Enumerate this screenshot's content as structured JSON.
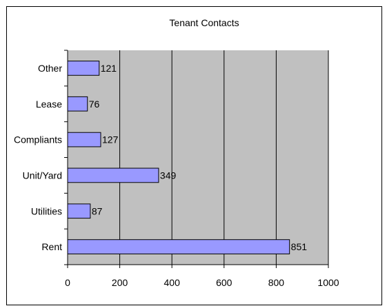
{
  "chart_data": {
    "type": "bar",
    "orientation": "horizontal",
    "title": "Tenant Contacts",
    "categories": [
      "Other",
      "Lease",
      "Compliants",
      "Unit/Yard",
      "Utilities",
      "Rent"
    ],
    "values": [
      121,
      76,
      127,
      349,
      87,
      851
    ],
    "data_labels": [
      "121",
      "76",
      "127",
      "349",
      "87",
      "851"
    ],
    "xlim": [
      0,
      1000
    ],
    "x_ticks": [
      "0",
      "200",
      "400",
      "600",
      "800",
      "1000"
    ],
    "xlabel": "",
    "ylabel": "",
    "grid": "vertical",
    "legend": "none",
    "colors": {
      "bar_fill": "#9999ff",
      "bar_stroke": "#000000",
      "plot_background": "#c0c0c0",
      "gridline": "#000000"
    }
  }
}
